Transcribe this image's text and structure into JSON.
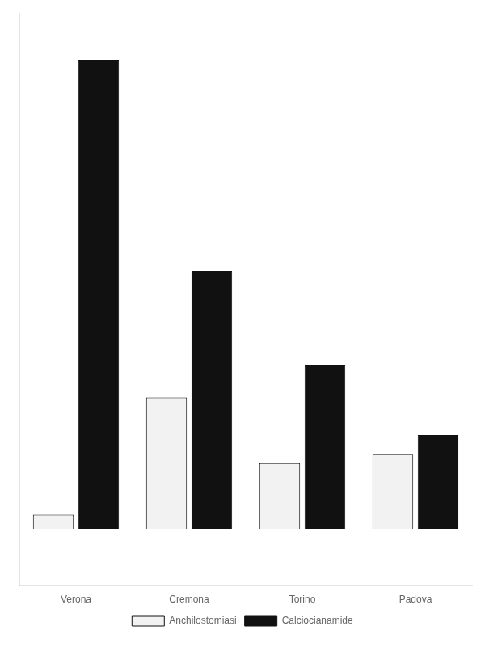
{
  "chart_data": {
    "type": "bar",
    "categories": [
      "Verona",
      "Cremona",
      "Torino",
      "Padova"
    ],
    "series": [
      {
        "name": "Anchilostomiasi",
        "color": "#f2f2f2",
        "values": [
          3,
          28,
          14,
          16
        ]
      },
      {
        "name": "Calciocianamide",
        "color": "#111111",
        "values": [
          100,
          55,
          35,
          20
        ]
      }
    ],
    "ylim": [
      -12,
      110
    ],
    "grid": false,
    "legend": "bottom",
    "tick_labels": "x"
  }
}
